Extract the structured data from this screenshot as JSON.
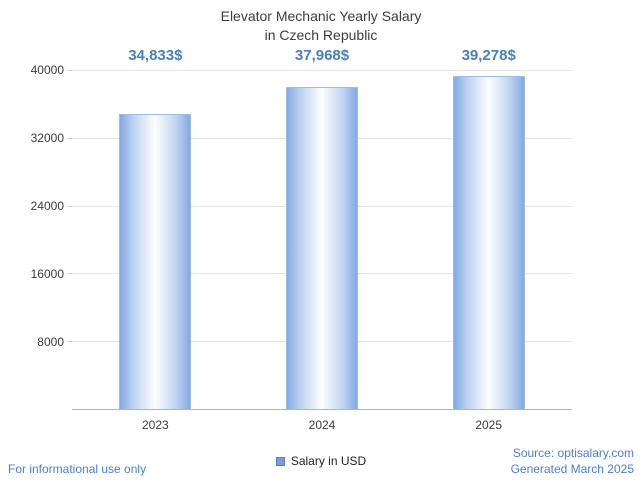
{
  "title": {
    "line1": "Elevator Mechanic Yearly Salary",
    "line2": "in Czech Republic"
  },
  "chart_data": {
    "type": "bar",
    "categories": [
      "2023",
      "2024",
      "2025"
    ],
    "values": [
      34833,
      37968,
      39278
    ],
    "value_labels": [
      "34,833$",
      "37,968$",
      "39,278$"
    ],
    "series": [
      {
        "name": "Salary in USD",
        "values": [
          34833,
          37968,
          39278
        ]
      }
    ],
    "title": "Elevator Mechanic Yearly Salary in Czech Republic",
    "xlabel": "",
    "ylabel": "",
    "ylim": [
      0,
      40000
    ],
    "yticks": [
      8000,
      16000,
      24000,
      32000,
      40000
    ],
    "grid": true,
    "legend_position": "bottom",
    "colors": {
      "bar_edge": "#84a9e2",
      "bar_mid": "#bfd4f1",
      "bar_center": "#fdfeff",
      "value_label": "#4a7ebc",
      "gridline": "#e5e5e5",
      "axis_line": "#b5b5b5"
    }
  },
  "legend": {
    "label": "Salary in USD"
  },
  "footer": {
    "left": "For informational use only",
    "source": "Source: optisalary.com",
    "generated": "Generated March 2025"
  }
}
